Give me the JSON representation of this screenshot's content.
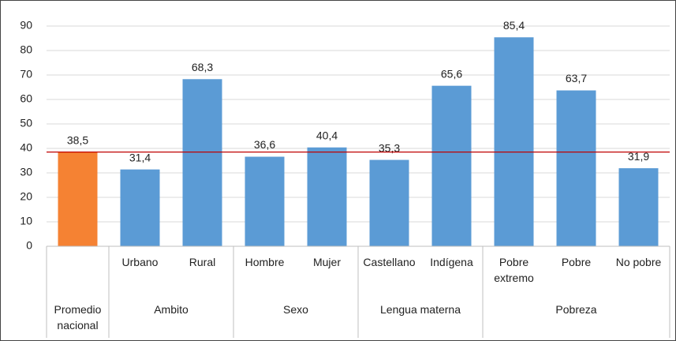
{
  "chart_data": {
    "type": "bar",
    "categories": [
      null,
      "Urbano",
      "Rural",
      "Hombre",
      "Mujer",
      "Castellano",
      "Indígena",
      "Pobre extremo",
      "Pobre",
      "No pobre"
    ],
    "groups": [
      {
        "label": "Promedio nacional",
        "count": 1
      },
      {
        "label": "Ambito",
        "count": 2
      },
      {
        "label": "Sexo",
        "count": 2
      },
      {
        "label": "Lengua materna",
        "count": 2
      },
      {
        "label": "Pobreza",
        "count": 3
      }
    ],
    "values": [
      38.5,
      31.4,
      68.3,
      36.6,
      40.4,
      35.3,
      65.6,
      85.4,
      63.7,
      31.9
    ],
    "value_labels": [
      "38,5",
      "31,4",
      "68,3",
      "36,6",
      "40,4",
      "35,3",
      "65,6",
      "85,4",
      "63,7",
      "31,9"
    ],
    "colors": [
      "#f58233",
      "#5b9bd5",
      "#5b9bd5",
      "#5b9bd5",
      "#5b9bd5",
      "#5b9bd5",
      "#5b9bd5",
      "#5b9bd5",
      "#5b9bd5",
      "#5b9bd5"
    ],
    "reference_line": {
      "value": 38.5,
      "color": "#c00000"
    },
    "ylim": [
      0,
      90
    ],
    "yticks": [
      0,
      10,
      20,
      30,
      40,
      50,
      60,
      70,
      80,
      90
    ],
    "grid": true
  }
}
